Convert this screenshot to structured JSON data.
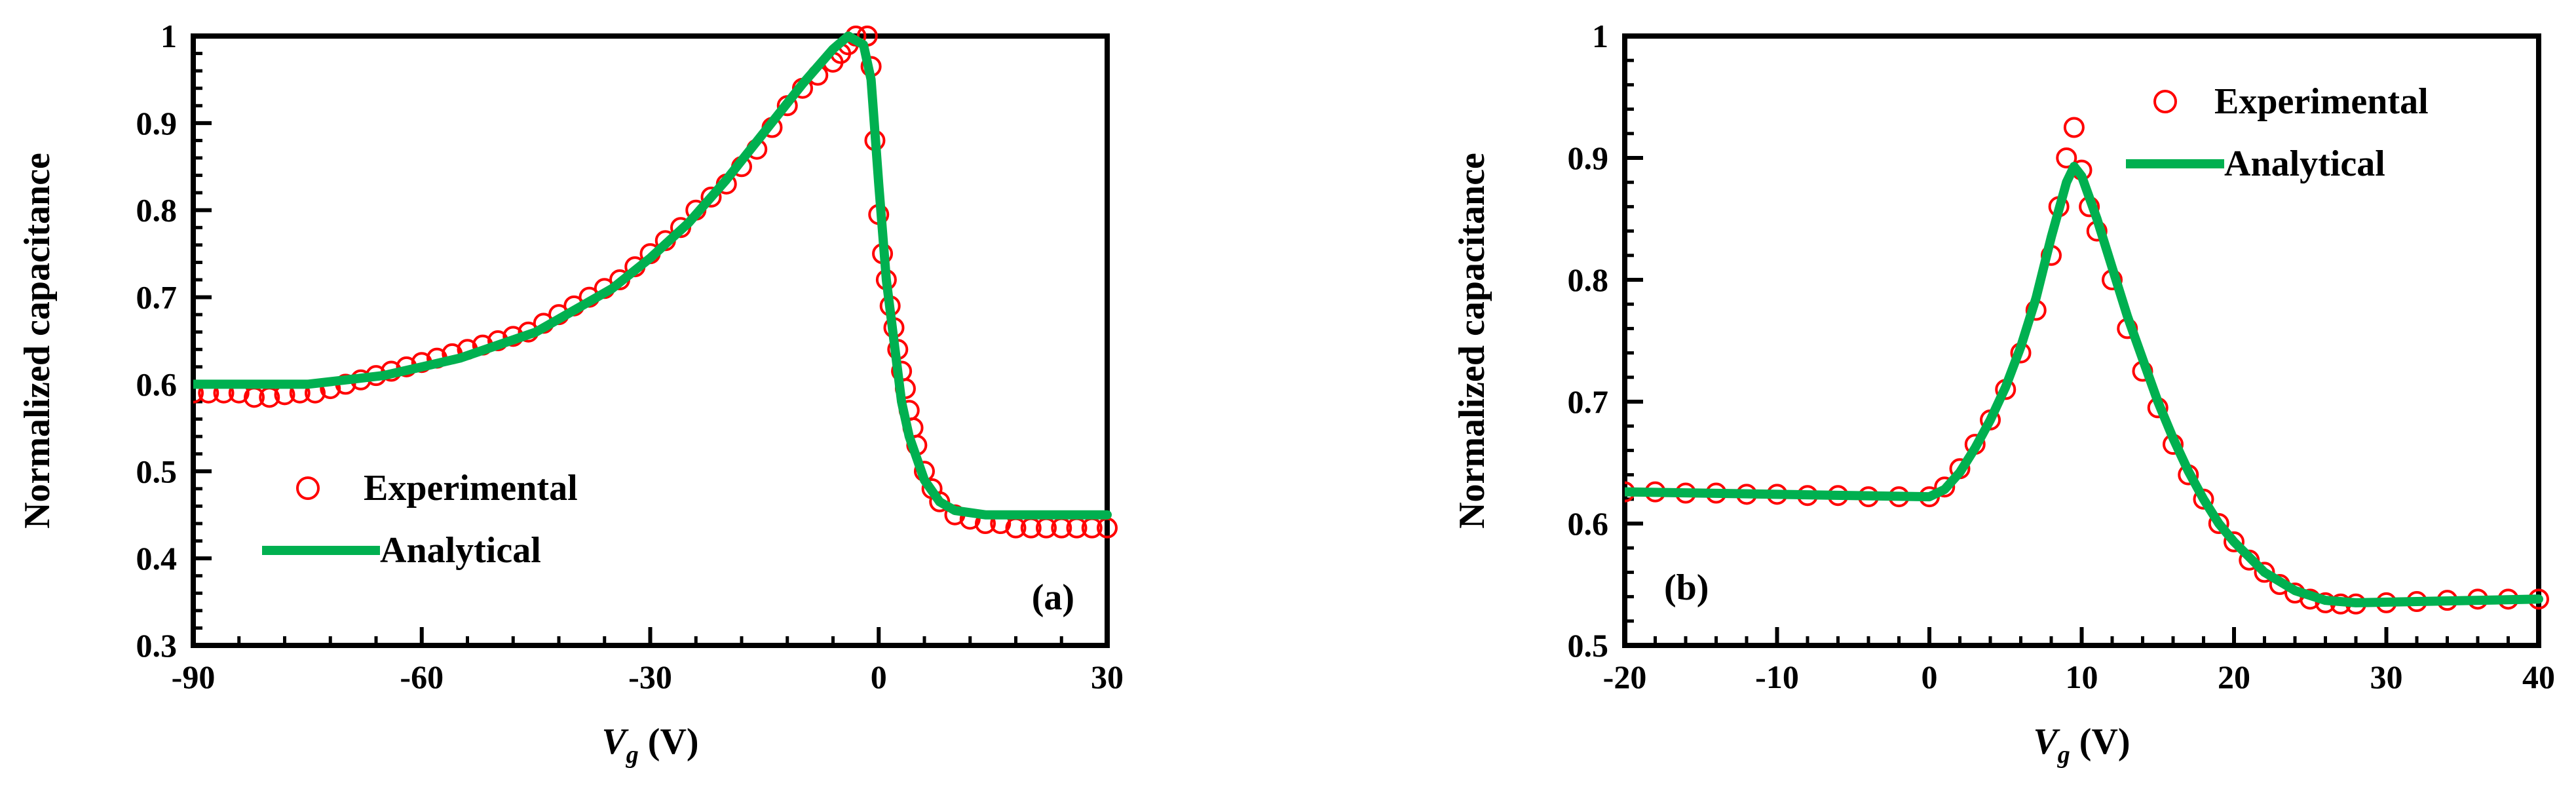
{
  "chart_data": [
    {
      "type": "scatter",
      "panel_label": "(a)",
      "xlabel_var": "V",
      "xlabel_sub": "g",
      "xlabel_unit": " (V)",
      "ylabel": "Normalized capacitance",
      "xlim": [
        -90,
        30
      ],
      "ylim": [
        0.3,
        1.0
      ],
      "xticks": [
        "-90",
        "-60",
        "-30",
        "0",
        "30"
      ],
      "yticks": [
        "0.3",
        "0.4",
        "0.5",
        "0.6",
        "0.7",
        "0.8",
        "0.9",
        "1"
      ],
      "legend_position": "lower-left",
      "colors": {
        "experimental": "#ff0000",
        "analytical": "#00b050"
      },
      "series": [
        {
          "name": "Experimental",
          "marker": "open-circle",
          "points": [
            [
              -90,
              0.59
            ],
            [
              -88,
              0.59
            ],
            [
              -86,
              0.59
            ],
            [
              -84,
              0.59
            ],
            [
              -82,
              0.585
            ],
            [
              -80,
              0.585
            ],
            [
              -78,
              0.588
            ],
            [
              -76,
              0.59
            ],
            [
              -74,
              0.59
            ],
            [
              -72,
              0.595
            ],
            [
              -70,
              0.6
            ],
            [
              -68,
              0.605
            ],
            [
              -66,
              0.61
            ],
            [
              -64,
              0.615
            ],
            [
              -62,
              0.62
            ],
            [
              -60,
              0.625
            ],
            [
              -58,
              0.63
            ],
            [
              -56,
              0.635
            ],
            [
              -54,
              0.64
            ],
            [
              -52,
              0.645
            ],
            [
              -50,
              0.65
            ],
            [
              -48,
              0.655
            ],
            [
              -46,
              0.66
            ],
            [
              -44,
              0.67
            ],
            [
              -42,
              0.68
            ],
            [
              -40,
              0.69
            ],
            [
              -38,
              0.7
            ],
            [
              -36,
              0.71
            ],
            [
              -34,
              0.72
            ],
            [
              -32,
              0.735
            ],
            [
              -30,
              0.75
            ],
            [
              -28,
              0.765
            ],
            [
              -26,
              0.78
            ],
            [
              -24,
              0.8
            ],
            [
              -22,
              0.815
            ],
            [
              -20,
              0.83
            ],
            [
              -18,
              0.85
            ],
            [
              -16,
              0.87
            ],
            [
              -14,
              0.895
            ],
            [
              -12,
              0.92
            ],
            [
              -10,
              0.94
            ],
            [
              -8,
              0.955
            ],
            [
              -6,
              0.97
            ],
            [
              -5,
              0.98
            ],
            [
              -4,
              0.99
            ],
            [
              -3,
              1.0
            ],
            [
              -1.5,
              1.0
            ],
            [
              -1,
              0.965
            ],
            [
              -0.5,
              0.88
            ],
            [
              0,
              0.795
            ],
            [
              0.5,
              0.75
            ],
            [
              1,
              0.72
            ],
            [
              1.5,
              0.69
            ],
            [
              2,
              0.665
            ],
            [
              2.5,
              0.64
            ],
            [
              3,
              0.615
            ],
            [
              3.5,
              0.595
            ],
            [
              4,
              0.57
            ],
            [
              4.5,
              0.55
            ],
            [
              5,
              0.53
            ],
            [
              6,
              0.5
            ],
            [
              7,
              0.48
            ],
            [
              8,
              0.465
            ],
            [
              10,
              0.45
            ],
            [
              12,
              0.445
            ],
            [
              14,
              0.44
            ],
            [
              16,
              0.44
            ],
            [
              18,
              0.435
            ],
            [
              20,
              0.435
            ],
            [
              22,
              0.435
            ],
            [
              24,
              0.435
            ],
            [
              26,
              0.435
            ],
            [
              28,
              0.435
            ],
            [
              30,
              0.435
            ]
          ]
        },
        {
          "name": "Analytical",
          "marker": "line",
          "points": [
            [
              -90,
              0.6
            ],
            [
              -80,
              0.6
            ],
            [
              -75,
              0.6
            ],
            [
              -70,
              0.605
            ],
            [
              -65,
              0.61
            ],
            [
              -60,
              0.62
            ],
            [
              -55,
              0.63
            ],
            [
              -50,
              0.645
            ],
            [
              -45,
              0.66
            ],
            [
              -40,
              0.685
            ],
            [
              -35,
              0.71
            ],
            [
              -30,
              0.745
            ],
            [
              -25,
              0.785
            ],
            [
              -20,
              0.835
            ],
            [
              -15,
              0.89
            ],
            [
              -10,
              0.945
            ],
            [
              -6,
              0.985
            ],
            [
              -4,
              1.0
            ],
            [
              -2,
              0.99
            ],
            [
              -1,
              0.95
            ],
            [
              0,
              0.83
            ],
            [
              1,
              0.72
            ],
            [
              2,
              0.65
            ],
            [
              3,
              0.58
            ],
            [
              4,
              0.54
            ],
            [
              6,
              0.49
            ],
            [
              8,
              0.465
            ],
            [
              10,
              0.455
            ],
            [
              14,
              0.45
            ],
            [
              20,
              0.45
            ],
            [
              30,
              0.45
            ]
          ]
        }
      ]
    },
    {
      "type": "scatter",
      "panel_label": "(b)",
      "xlabel_var": "V",
      "xlabel_sub": "g",
      "xlabel_unit": " (V)",
      "ylabel": "Normalized capacitance",
      "xlim": [
        -20,
        40
      ],
      "ylim": [
        0.5,
        1.0
      ],
      "xticks": [
        "-20",
        "-10",
        "0",
        "10",
        "20",
        "30",
        "40"
      ],
      "yticks": [
        "0.5",
        "0.6",
        "0.7",
        "0.8",
        "0.9",
        "1"
      ],
      "legend_position": "top-right",
      "colors": {
        "experimental": "#ff0000",
        "analytical": "#00b050"
      },
      "series": [
        {
          "name": "Experimental",
          "marker": "open-circle",
          "points": [
            [
              -20,
              0.626
            ],
            [
              -18,
              0.626
            ],
            [
              -16,
              0.625
            ],
            [
              -14,
              0.625
            ],
            [
              -12,
              0.624
            ],
            [
              -10,
              0.624
            ],
            [
              -8,
              0.623
            ],
            [
              -6,
              0.623
            ],
            [
              -4,
              0.622
            ],
            [
              -2,
              0.622
            ],
            [
              0,
              0.622
            ],
            [
              1,
              0.63
            ],
            [
              2,
              0.645
            ],
            [
              3,
              0.665
            ],
            [
              4,
              0.685
            ],
            [
              5,
              0.71
            ],
            [
              6,
              0.74
            ],
            [
              7,
              0.775
            ],
            [
              8,
              0.82
            ],
            [
              8.5,
              0.86
            ],
            [
              9,
              0.9
            ],
            [
              9.5,
              0.925
            ],
            [
              10,
              0.89
            ],
            [
              10.5,
              0.86
            ],
            [
              11,
              0.84
            ],
            [
              12,
              0.8
            ],
            [
              13,
              0.76
            ],
            [
              14,
              0.725
            ],
            [
              15,
              0.695
            ],
            [
              16,
              0.665
            ],
            [
              17,
              0.64
            ],
            [
              18,
              0.62
            ],
            [
              19,
              0.6
            ],
            [
              20,
              0.585
            ],
            [
              21,
              0.57
            ],
            [
              22,
              0.56
            ],
            [
              23,
              0.55
            ],
            [
              24,
              0.543
            ],
            [
              25,
              0.538
            ],
            [
              26,
              0.535
            ],
            [
              27,
              0.534
            ],
            [
              28,
              0.534
            ],
            [
              30,
              0.535
            ],
            [
              32,
              0.536
            ],
            [
              34,
              0.537
            ],
            [
              36,
              0.538
            ],
            [
              38,
              0.538
            ],
            [
              40,
              0.538
            ]
          ]
        },
        {
          "name": "Analytical",
          "marker": "line",
          "points": [
            [
              -20,
              0.626
            ],
            [
              -10,
              0.624
            ],
            [
              0,
              0.622
            ],
            [
              1,
              0.628
            ],
            [
              2,
              0.642
            ],
            [
              3,
              0.662
            ],
            [
              4,
              0.685
            ],
            [
              5,
              0.712
            ],
            [
              6,
              0.745
            ],
            [
              7,
              0.785
            ],
            [
              8,
              0.835
            ],
            [
              9,
              0.88
            ],
            [
              9.5,
              0.893
            ],
            [
              10,
              0.885
            ],
            [
              11,
              0.85
            ],
            [
              12,
              0.81
            ],
            [
              13,
              0.77
            ],
            [
              14,
              0.735
            ],
            [
              15,
              0.7
            ],
            [
              16,
              0.67
            ],
            [
              17,
              0.643
            ],
            [
              18,
              0.62
            ],
            [
              19,
              0.6
            ],
            [
              20,
              0.585
            ],
            [
              22,
              0.56
            ],
            [
              24,
              0.545
            ],
            [
              26,
              0.537
            ],
            [
              28,
              0.535
            ],
            [
              32,
              0.536
            ],
            [
              40,
              0.538
            ]
          ]
        }
      ]
    }
  ]
}
